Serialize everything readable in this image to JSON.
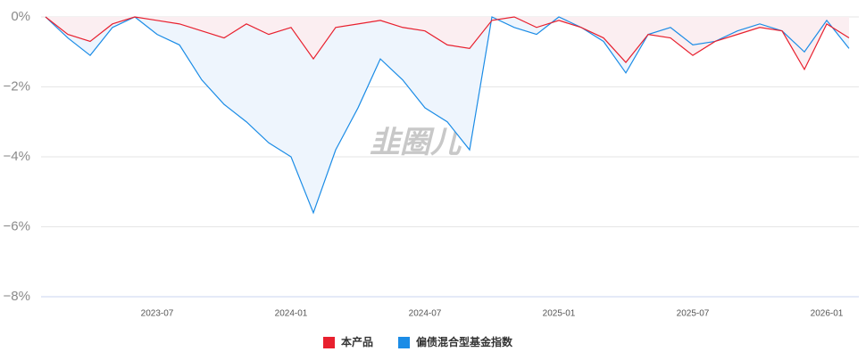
{
  "chart_data": {
    "type": "line",
    "watermark": "韭圈儿",
    "x": [
      "2023-02",
      "2023-03",
      "2023-04",
      "2023-05",
      "2023-06",
      "2023-07",
      "2023-08",
      "2023-09",
      "2023-10",
      "2023-11",
      "2023-12",
      "2024-01",
      "2024-02",
      "2024-03",
      "2024-04",
      "2024-05",
      "2024-06",
      "2024-07",
      "2024-08",
      "2024-09",
      "2024-10",
      "2024-11",
      "2024-12",
      "2025-01",
      "2025-02",
      "2025-03",
      "2025-04",
      "2025-05",
      "2025-06",
      "2025-07",
      "2025-08",
      "2025-09",
      "2025-10",
      "2025-11",
      "2025-12",
      "2026-01",
      "2026-02"
    ],
    "xlim": [
      "2023-02",
      "2026-02"
    ],
    "xticks": [
      "2023-07",
      "2024-01",
      "2024-07",
      "2025-01",
      "2025-07",
      "2026-01"
    ],
    "ylim": [
      -8,
      0
    ],
    "yticks": [
      {
        "value": 0,
        "label": "0%"
      },
      {
        "value": -2,
        "label": "−2%"
      },
      {
        "value": -4,
        "label": "−4%"
      },
      {
        "value": -6,
        "label": "−6%"
      },
      {
        "value": -8,
        "label": "−8%"
      }
    ],
    "grid": true,
    "series": [
      {
        "name": "本产品",
        "color": "#e8202e",
        "fill": "#fbeef1",
        "values": [
          0,
          -0.5,
          -0.7,
          -0.2,
          0,
          -0.1,
          -0.2,
          -0.4,
          -0.6,
          -0.2,
          -0.5,
          -0.3,
          -1.2,
          -0.3,
          -0.2,
          -0.1,
          -0.3,
          -0.4,
          -0.8,
          -0.9,
          -0.1,
          0,
          -0.3,
          -0.1,
          -0.3,
          -0.6,
          -1.3,
          -0.5,
          -0.6,
          -1.1,
          -0.7,
          -0.5,
          -0.3,
          -0.4,
          -1.5,
          -0.2,
          -0.6
        ]
      },
      {
        "name": "偏债混合型基金指数",
        "color": "#1b8ce6",
        "fill": "#eef5fd",
        "values": [
          0,
          -0.6,
          -1.1,
          -0.3,
          0,
          -0.5,
          -0.8,
          -1.8,
          -2.5,
          -3.0,
          -3.6,
          -4.0,
          -5.6,
          -3.8,
          -2.6,
          -1.2,
          -1.8,
          -2.6,
          -3.0,
          -3.8,
          0,
          -0.3,
          -0.5,
          0,
          -0.3,
          -0.7,
          -1.6,
          -0.5,
          -0.3,
          -0.8,
          -0.7,
          -0.4,
          -0.2,
          -0.4,
          -1.0,
          -0.1,
          -0.9
        ]
      }
    ]
  }
}
